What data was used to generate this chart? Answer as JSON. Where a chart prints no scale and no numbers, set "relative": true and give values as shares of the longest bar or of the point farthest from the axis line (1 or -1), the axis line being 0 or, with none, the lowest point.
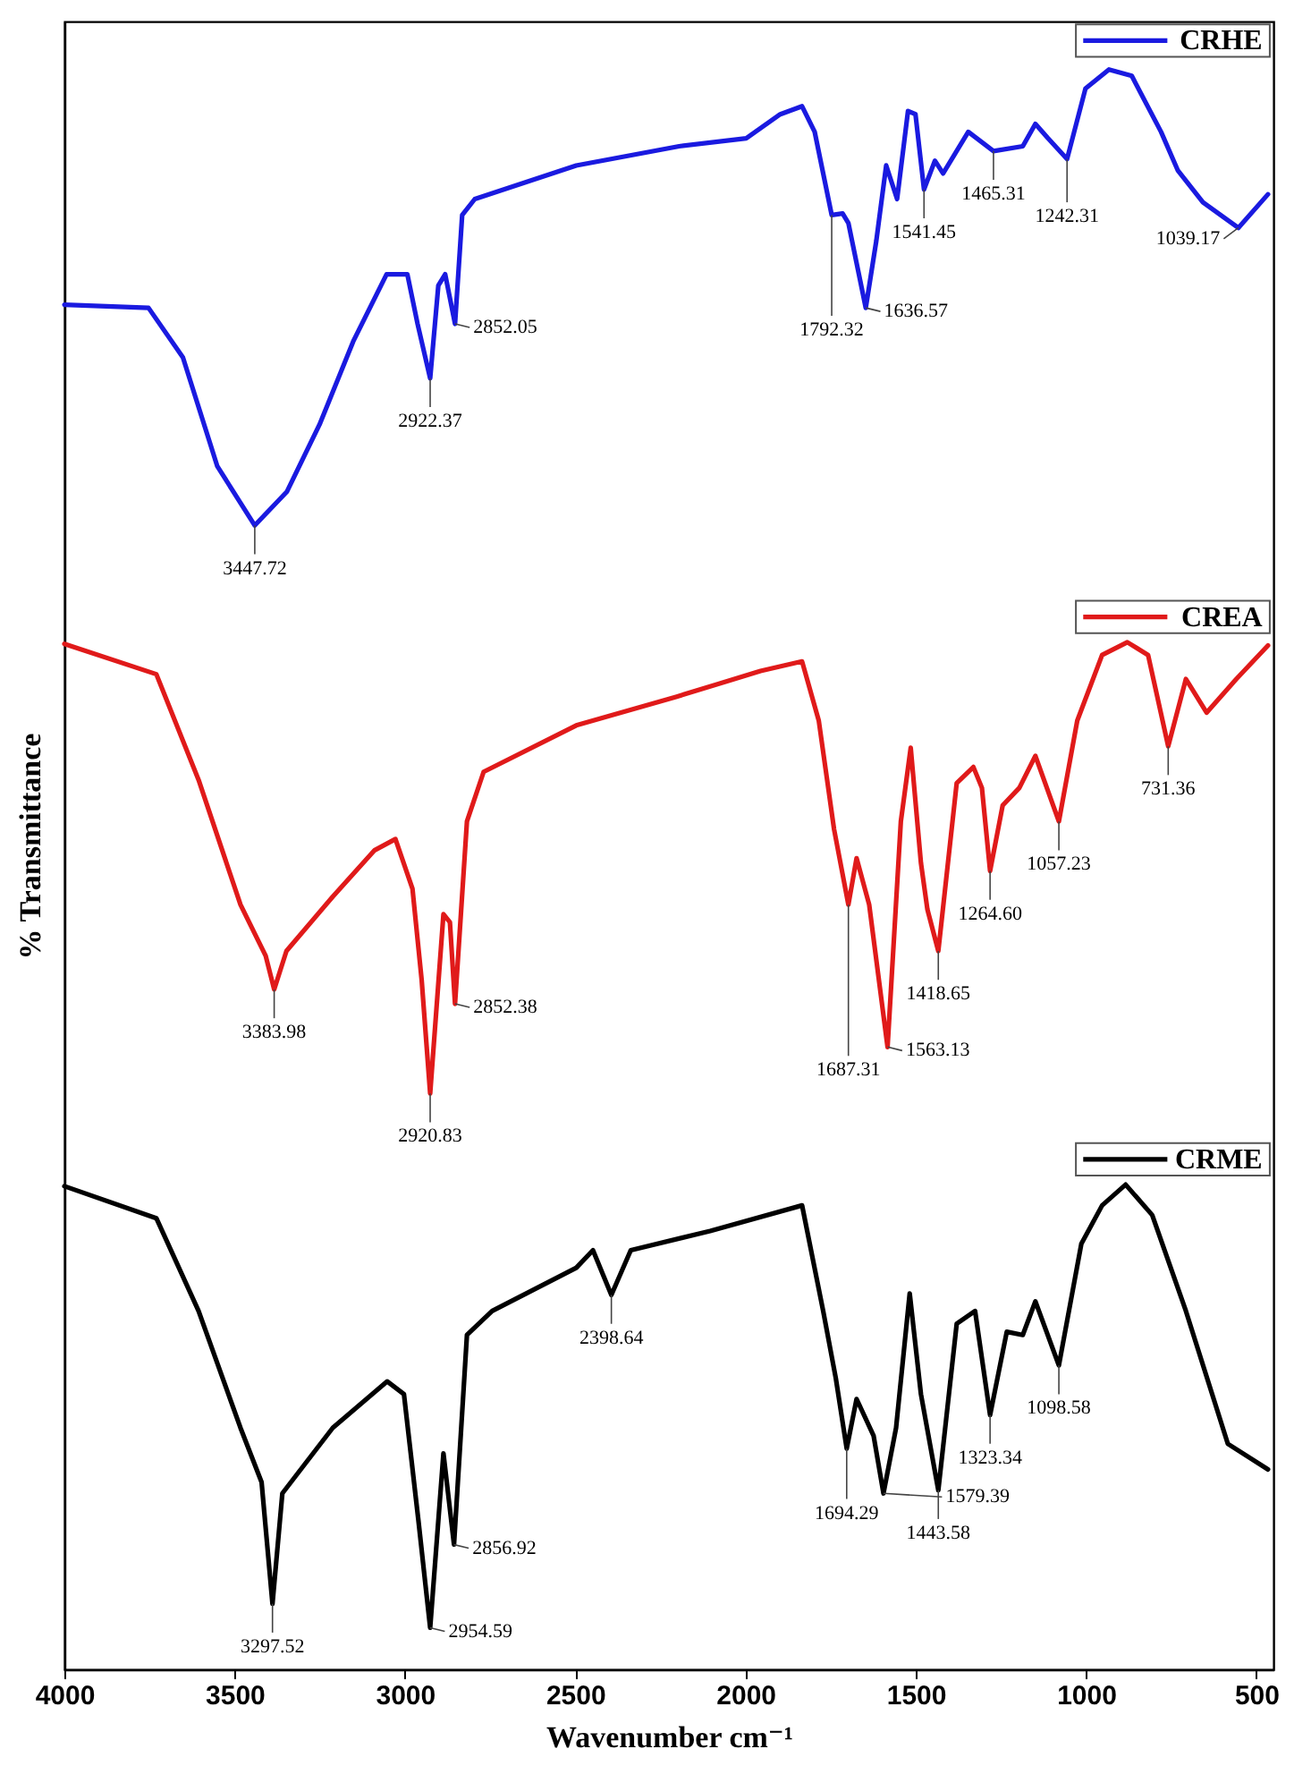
{
  "chart_data": {
    "type": "line",
    "relative": true,
    "xlabel": "Wavenumber cm⁻¹",
    "ylabel": "% Transmittance",
    "xlim": [
      4000,
      450
    ],
    "xticks": [
      4000,
      3500,
      3000,
      2500,
      2000,
      1500,
      1000,
      500
    ],
    "tick_labels": "x",
    "legend": "top right",
    "series": [
      {
        "name": "CRHE",
        "color": "#1a1ae0",
        "x": [
          4000,
          3753,
          3652,
          3551,
          3441,
          3347,
          3251,
          3152,
          3054,
          2993,
          2963,
          2926,
          2902,
          2882,
          2853,
          2832,
          2795,
          2497,
          2195,
          1998,
          1898,
          1834,
          1797,
          1747,
          1715,
          1698,
          1647,
          1616,
          1587,
          1555,
          1523,
          1501,
          1476,
          1444,
          1420,
          1383,
          1346,
          1272,
          1186,
          1149,
          1112,
          1056,
          1002,
          933,
          866,
          780,
          731,
          657,
          553,
          466
        ],
        "values": [
          0.853,
          0.851,
          0.82,
          0.752,
          0.715,
          0.736,
          0.778,
          0.83,
          0.872,
          0.872,
          0.841,
          0.807,
          0.865,
          0.872,
          0.841,
          0.909,
          0.919,
          0.94,
          0.952,
          0.957,
          0.972,
          0.977,
          0.961,
          0.909,
          0.91,
          0.904,
          0.851,
          0.893,
          0.94,
          0.919,
          0.974,
          0.972,
          0.925,
          0.943,
          0.935,
          0.948,
          0.961,
          0.949,
          0.952,
          0.966,
          0.957,
          0.944,
          0.988,
          1.0,
          0.996,
          0.961,
          0.937,
          0.917,
          0.901,
          0.922
        ]
      },
      {
        "name": "CREA",
        "color": "#e01a1a",
        "x": [
          4000,
          3730,
          3606,
          3483,
          3409,
          3384,
          3348,
          3212,
          3089,
          3028,
          2978,
          2951,
          2926,
          2887,
          2868,
          2853,
          2818,
          2769,
          2497,
          2202,
          1956,
          1834,
          1785,
          1740,
          1698,
          1674,
          1637,
          1583,
          1544,
          1515,
          1485,
          1466,
          1434,
          1380,
          1331,
          1306,
          1282,
          1245,
          1196,
          1149,
          1080,
          1026,
          953,
          879,
          818,
          759,
          707,
          646,
          559,
          466
        ],
        "values": [
          0.641,
          0.622,
          0.556,
          0.478,
          0.446,
          0.425,
          0.449,
          0.483,
          0.512,
          0.519,
          0.488,
          0.431,
          0.36,
          0.472,
          0.467,
          0.416,
          0.53,
          0.561,
          0.59,
          0.608,
          0.624,
          0.63,
          0.593,
          0.525,
          0.478,
          0.507,
          0.478,
          0.389,
          0.53,
          0.576,
          0.504,
          0.475,
          0.449,
          0.554,
          0.564,
          0.551,
          0.499,
          0.54,
          0.551,
          0.571,
          0.53,
          0.593,
          0.634,
          0.642,
          0.634,
          0.577,
          0.619,
          0.598,
          0.619,
          0.64
        ]
      },
      {
        "name": "CRME",
        "color": "#000000",
        "x": [
          4000,
          3730,
          3606,
          3483,
          3421,
          3389,
          3360,
          3212,
          3052,
          3003,
          2961,
          2926,
          2887,
          2856,
          2818,
          2744,
          2497,
          2448,
          2394,
          2337,
          2104,
          1834,
          1772,
          1735,
          1703,
          1674,
          1624,
          1595,
          1558,
          1518,
          1485,
          1434,
          1380,
          1326,
          1282,
          1233,
          1186,
          1149,
          1080,
          1014,
          953,
          884,
          806,
          707,
          584,
          466
        ],
        "values": [
          0.302,
          0.282,
          0.224,
          0.151,
          0.117,
          0.041,
          0.11,
          0.151,
          0.18,
          0.172,
          0.094,
          0.026,
          0.135,
          0.078,
          0.209,
          0.224,
          0.251,
          0.262,
          0.234,
          0.262,
          0.274,
          0.29,
          0.224,
          0.182,
          0.138,
          0.169,
          0.146,
          0.11,
          0.151,
          0.235,
          0.172,
          0.112,
          0.216,
          0.224,
          0.159,
          0.211,
          0.209,
          0.23,
          0.19,
          0.266,
          0.29,
          0.303,
          0.284,
          0.224,
          0.141,
          0.125
        ]
      }
    ],
    "annotations": [
      {
        "text": "3447.72",
        "x": 3441,
        "y": 0.715
      },
      {
        "text": "2922.37",
        "x": 2926,
        "y": 0.807
      },
      {
        "text": "2852.05",
        "x": 2853,
        "y": 0.841
      },
      {
        "text": "1792.32",
        "x": 1747,
        "y": 0.909
      },
      {
        "text": "1636.57",
        "x": 1647,
        "y": 0.851
      },
      {
        "text": "1541.45",
        "x": 1476,
        "y": 0.925
      },
      {
        "text": "1465.31",
        "x": 1272,
        "y": 0.949
      },
      {
        "text": "1242.31",
        "x": 1056,
        "y": 0.944
      },
      {
        "text": "1039.17",
        "x": 553,
        "y": 0.901
      },
      {
        "text": "3383.98",
        "x": 3384,
        "y": 0.425
      },
      {
        "text": "2920.83",
        "x": 2926,
        "y": 0.36
      },
      {
        "text": "2852.38",
        "x": 2853,
        "y": 0.416
      },
      {
        "text": "1687.31",
        "x": 1698,
        "y": 0.478
      },
      {
        "text": "1563.13",
        "x": 1583,
        "y": 0.389
      },
      {
        "text": "1418.65",
        "x": 1434,
        "y": 0.449
      },
      {
        "text": "1264.60",
        "x": 1282,
        "y": 0.499
      },
      {
        "text": "1057.23",
        "x": 1080,
        "y": 0.53
      },
      {
        "text": "731.36",
        "x": 759,
        "y": 0.577
      },
      {
        "text": "3297.52",
        "x": 3389,
        "y": 0.041
      },
      {
        "text": "2954.59",
        "x": 2926,
        "y": 0.026
      },
      {
        "text": "2856.92",
        "x": 2856,
        "y": 0.078
      },
      {
        "text": "2398.64",
        "x": 2394,
        "y": 0.234
      },
      {
        "text": "1694.29",
        "x": 1703,
        "y": 0.138
      },
      {
        "text": "1579.39",
        "x": 1595,
        "y": 0.11
      },
      {
        "text": "1443.58",
        "x": 1434,
        "y": 0.112
      },
      {
        "text": "1323.34",
        "x": 1282,
        "y": 0.159
      },
      {
        "text": "1098.58",
        "x": 1080,
        "y": 0.19
      }
    ]
  }
}
